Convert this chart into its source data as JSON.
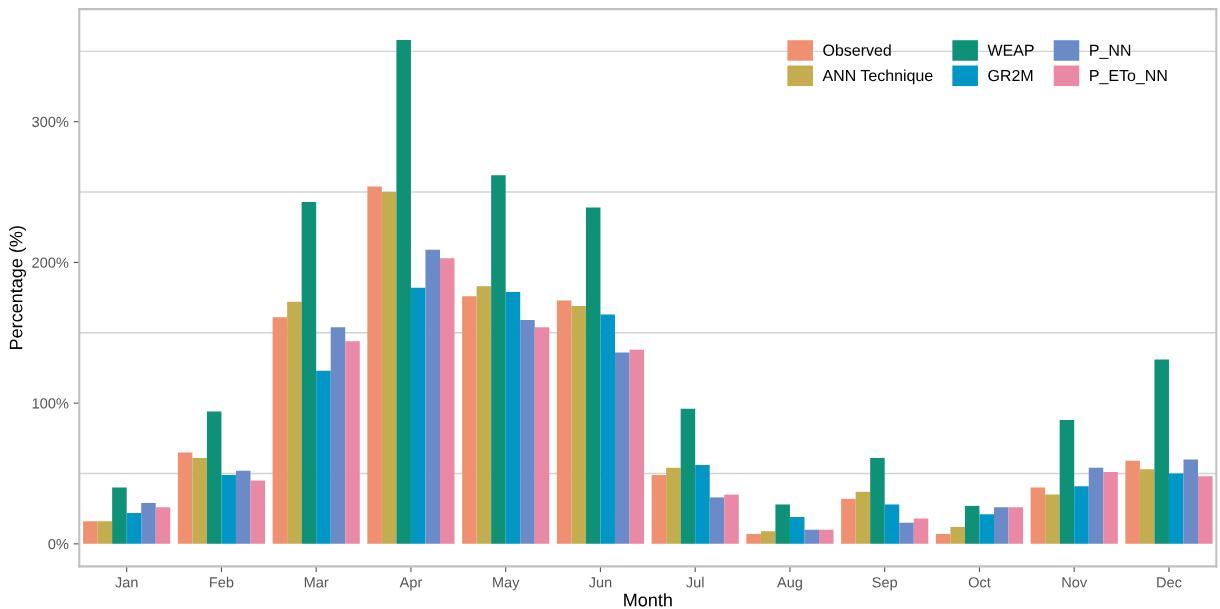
{
  "chart_data": {
    "type": "bar",
    "xlabel": "Month",
    "ylabel": "Percentage (%)",
    "categories": [
      "Jan",
      "Feb",
      "Mar",
      "Apr",
      "May",
      "Jun",
      "Jul",
      "Aug",
      "Sep",
      "Oct",
      "Nov",
      "Dec"
    ],
    "series": [
      {
        "name": "Observed",
        "color": "#ef9070",
        "values": [
          16,
          65,
          161,
          254,
          176,
          173,
          49,
          7,
          32,
          7,
          40,
          59
        ]
      },
      {
        "name": "ANN Technique",
        "color": "#c4ad4e",
        "values": [
          16,
          61,
          172,
          250,
          183,
          169,
          54,
          9,
          37,
          12,
          35,
          53
        ]
      },
      {
        "name": "WEAP",
        "color": "#0e9176",
        "values": [
          40,
          94,
          243,
          358,
          262,
          239,
          96,
          28,
          61,
          27,
          88,
          131
        ]
      },
      {
        "name": "GR2M",
        "color": "#0096c6",
        "values": [
          22,
          49,
          123,
          182,
          179,
          163,
          56,
          19,
          28,
          21,
          41,
          50
        ]
      },
      {
        "name": "P_NN",
        "color": "#6a8bc8",
        "values": [
          29,
          52,
          154,
          209,
          159,
          136,
          33,
          10,
          15,
          26,
          54,
          60
        ]
      },
      {
        "name": "P_ETo_NN",
        "color": "#e989a6",
        "values": [
          26,
          45,
          144,
          203,
          154,
          138,
          35,
          10,
          18,
          26,
          51,
          48
        ]
      }
    ],
    "ylim": [
      -16,
      380
    ],
    "yticks": [
      {
        "value": 0,
        "label": "0%"
      },
      {
        "value": 100,
        "label": "100%"
      },
      {
        "value": 200,
        "label": "200%"
      },
      {
        "value": 300,
        "label": "300%"
      }
    ],
    "ref_lines": [
      {
        "axis": "y",
        "value": 50,
        "color": "#d3d3d3"
      },
      {
        "axis": "y",
        "value": 150,
        "color": "#d3d3d3"
      },
      {
        "axis": "y",
        "value": 250,
        "color": "#d3d3d3"
      },
      {
        "axis": "y",
        "value": 350,
        "color": "#d3d3d3"
      }
    ],
    "legend": "top right"
  }
}
